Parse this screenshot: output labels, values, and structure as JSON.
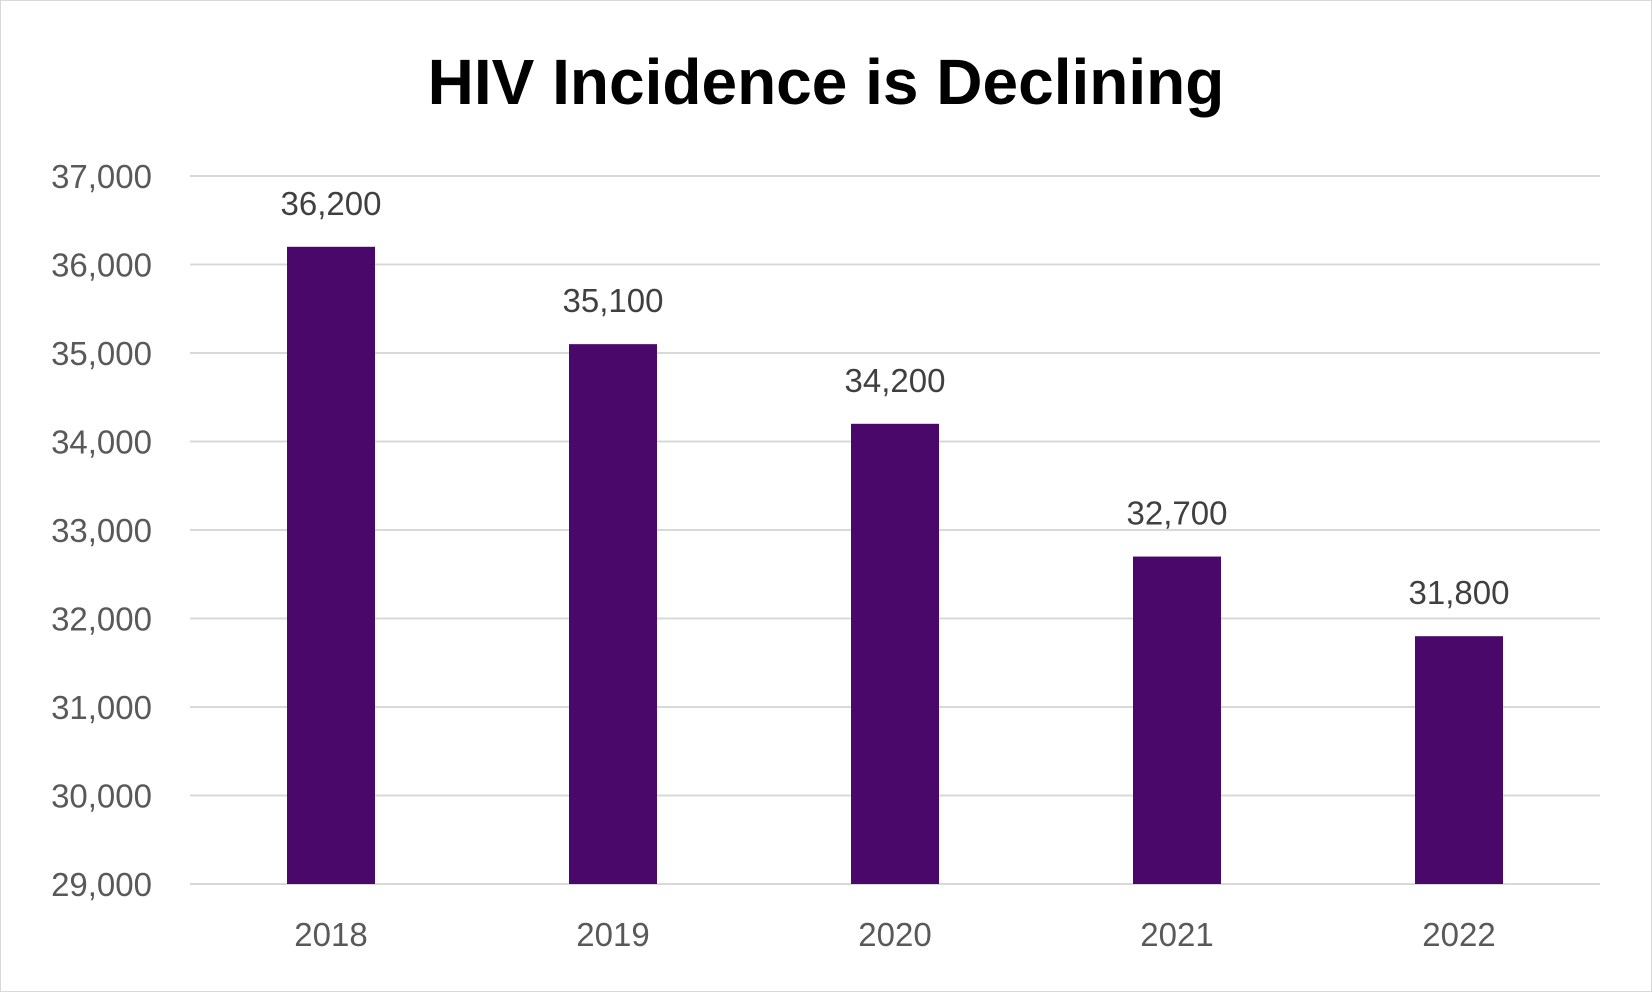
{
  "chart_data": {
    "type": "bar",
    "title": "HIV Incidence is Declining",
    "xlabel": "",
    "ylabel": "",
    "categories": [
      "2018",
      "2019",
      "2020",
      "2021",
      "2022"
    ],
    "values": [
      36200,
      35100,
      34200,
      32700,
      31800
    ],
    "data_labels": [
      "36,200",
      "35,100",
      "34,200",
      "32,700",
      "31,800"
    ],
    "ylim": [
      29000,
      37000
    ],
    "ytick_step": 1000,
    "ytick_labels": [
      "29,000",
      "30,000",
      "31,000",
      "32,000",
      "33,000",
      "34,000",
      "35,000",
      "36,000",
      "37,000"
    ],
    "grid": true,
    "legend": "none",
    "colors": {
      "bar": "#4a086b",
      "gridline": "#d9d9d9",
      "axis_text": "#595959",
      "data_label_text": "#404040",
      "title_text": "#000000",
      "frame_border": "#d9d9d9"
    }
  }
}
